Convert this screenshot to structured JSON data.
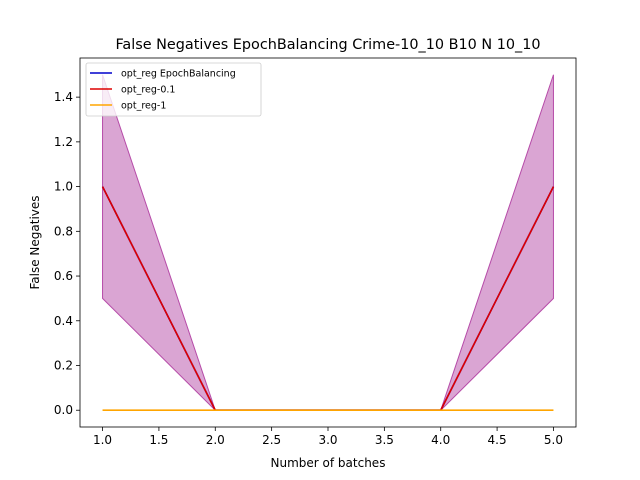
{
  "chart_data": {
    "type": "line",
    "title": "False Negatives EpochBalancing Crime-10_10 B10 N 10_10",
    "xlabel": "Number of batches",
    "ylabel": "False Negatives",
    "xlim": [
      0.8,
      5.2
    ],
    "ylim": [
      -0.075,
      1.575
    ],
    "xticks": [
      "1.0",
      "1.5",
      "2.0",
      "2.5",
      "3.0",
      "3.5",
      "4.0",
      "4.5",
      "5.0"
    ],
    "yticks": [
      "0.0",
      "0.2",
      "0.4",
      "0.6",
      "0.8",
      "1.0",
      "1.2",
      "1.4"
    ],
    "grid": false,
    "legend_position": "top-left",
    "x": [
      1,
      2,
      3,
      4,
      5
    ],
    "series": [
      {
        "name": "opt_reg EpochBalancing",
        "color": "#0000cc",
        "values": [
          1.0,
          0.0,
          0.0,
          0.0,
          1.0
        ]
      },
      {
        "name": "opt_reg-0.1",
        "color": "#dd0000",
        "values": [
          1.0,
          0.0,
          0.0,
          0.0,
          1.0
        ],
        "band_lower": [
          0.5,
          0.0,
          0.0,
          0.0,
          0.5
        ],
        "band_upper": [
          1.5,
          0.0,
          0.0,
          0.0,
          1.5
        ],
        "band_color": "#b64ba8"
      },
      {
        "name": "opt_reg-1",
        "color": "#ffa500",
        "values": [
          0.0,
          0.0,
          0.0,
          0.0,
          0.0
        ]
      }
    ]
  }
}
